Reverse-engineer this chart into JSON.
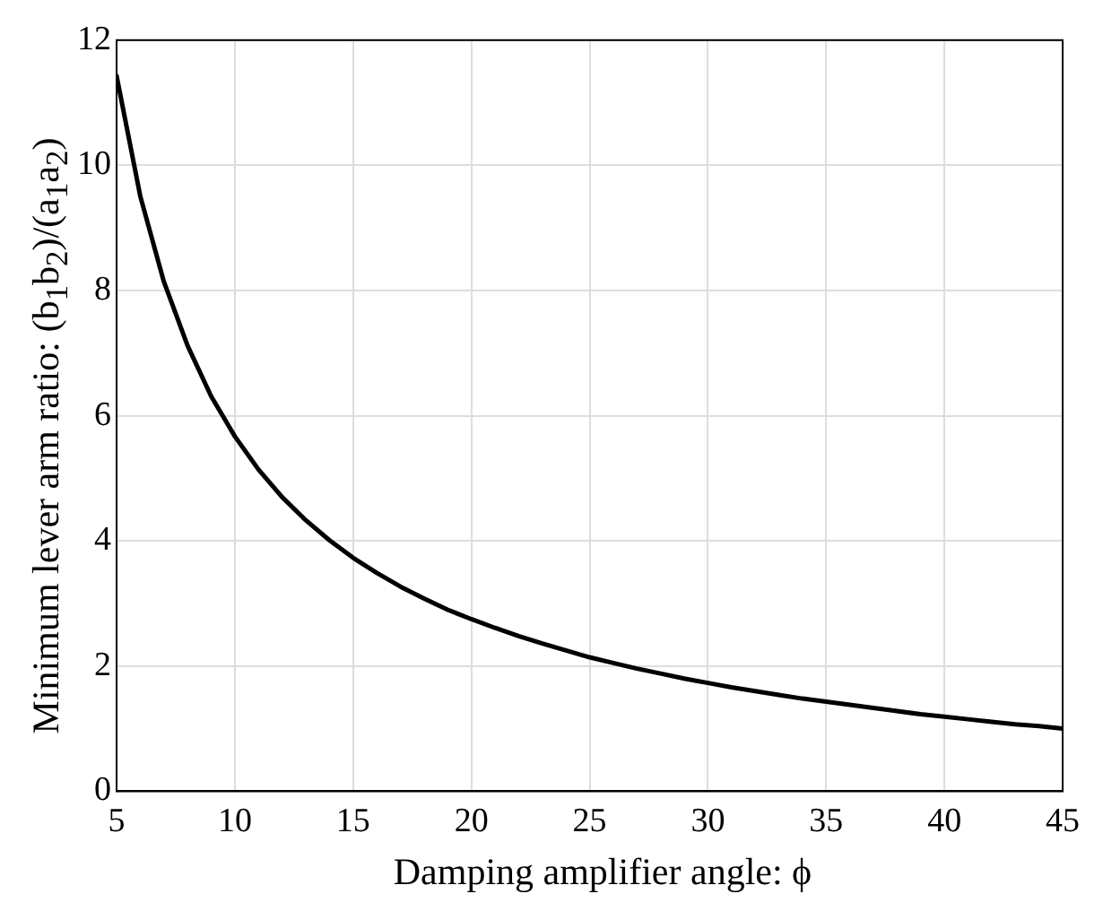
{
  "chart_data": {
    "type": "line",
    "xlabel": "Damping amplifier angle: ϕ",
    "ylabel": "Minimum lever arm ratio: (b$_{1}$b$_{2}$)/(a$_{1}$a$_{2}$)",
    "x": [
      5,
      6,
      7,
      8,
      9,
      10,
      11,
      12,
      13,
      14,
      15,
      16,
      17,
      18,
      19,
      20,
      21,
      22,
      23,
      24,
      25,
      26,
      27,
      28,
      29,
      30,
      31,
      32,
      33,
      34,
      35,
      36,
      37,
      38,
      39,
      40,
      41,
      42,
      43,
      44,
      45
    ],
    "series": [
      {
        "color": "#000000",
        "values": [
          11.43,
          9.51,
          8.14,
          7.12,
          6.31,
          5.67,
          5.14,
          4.7,
          4.33,
          4.01,
          3.73,
          3.49,
          3.27,
          3.08,
          2.9,
          2.75,
          2.61,
          2.48,
          2.36,
          2.25,
          2.14,
          2.05,
          1.96,
          1.88,
          1.8,
          1.73,
          1.66,
          1.6,
          1.54,
          1.48,
          1.43,
          1.38,
          1.33,
          1.28,
          1.23,
          1.19,
          1.15,
          1.11,
          1.07,
          1.04,
          1.0
        ]
      }
    ],
    "xlim": [
      5,
      45
    ],
    "xticks": [
      5,
      10,
      15,
      20,
      25,
      30,
      35,
      40,
      45
    ],
    "ylim": [
      0,
      12
    ],
    "yticks": [
      0,
      2,
      4,
      6,
      8,
      10,
      12
    ],
    "grid": true,
    "legend": false,
    "marker": "none",
    "line_style": "solid"
  }
}
